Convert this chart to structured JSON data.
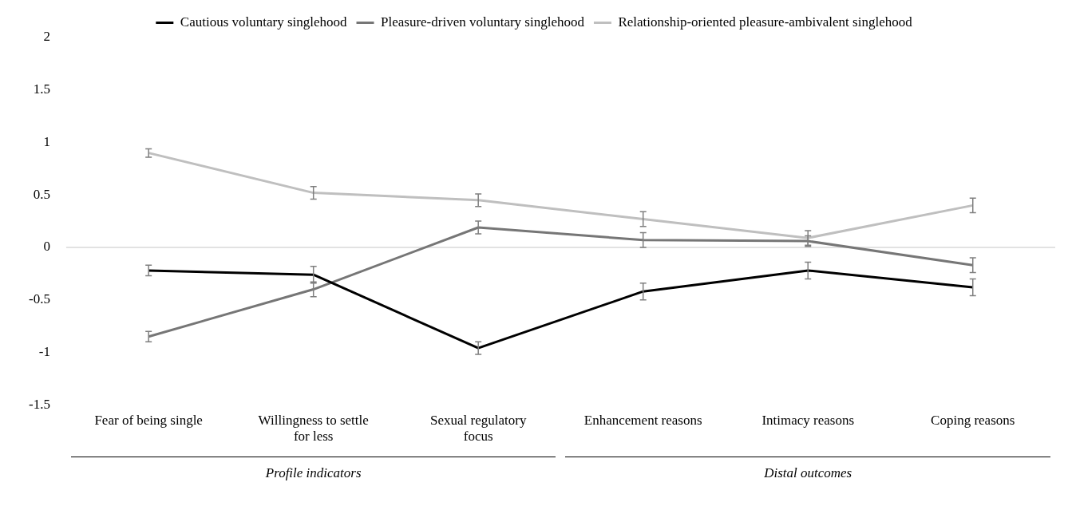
{
  "chart_data": {
    "type": "line",
    "categories": [
      "Fear of being single",
      "Willingness to settle for less",
      "Sexual regulatory focus",
      "Enhancement reasons",
      "Intimacy reasons",
      "Coping reasons"
    ],
    "series": [
      {
        "name": "Cautious voluntary singlehood",
        "color": "#000000",
        "values": [
          -0.22,
          -0.26,
          -0.96,
          -0.42,
          -0.22,
          -0.38
        ],
        "errors": [
          0.05,
          0.08,
          0.06,
          0.08,
          0.08,
          0.08
        ]
      },
      {
        "name": "Pleasure-driven voluntary singlehood",
        "color": "#767676",
        "values": [
          -0.85,
          -0.4,
          0.19,
          0.07,
          0.06,
          -0.17
        ],
        "errors": [
          0.05,
          0.07,
          0.06,
          0.07,
          0.05,
          0.07
        ]
      },
      {
        "name": "Relationship-oriented pleasure-ambivalent singlehood",
        "color": "#bfbfbf",
        "values": [
          0.9,
          0.52,
          0.45,
          0.27,
          0.09,
          0.4
        ],
        "errors": [
          0.04,
          0.06,
          0.06,
          0.07,
          0.07,
          0.07
        ]
      }
    ],
    "ylim": [
      -1.5,
      2
    ],
    "yticks": [
      -1.5,
      -1,
      -0.5,
      0,
      0.5,
      1,
      1.5,
      2
    ],
    "ref_lines": [
      {
        "axis": "y",
        "value": 0,
        "color": "#d9d9d9"
      }
    ],
    "annotations": [
      "Profile indicators",
      "Distal outcomes"
    ],
    "legend": "top",
    "grid": false,
    "marker": "none",
    "line_style": "solid"
  }
}
